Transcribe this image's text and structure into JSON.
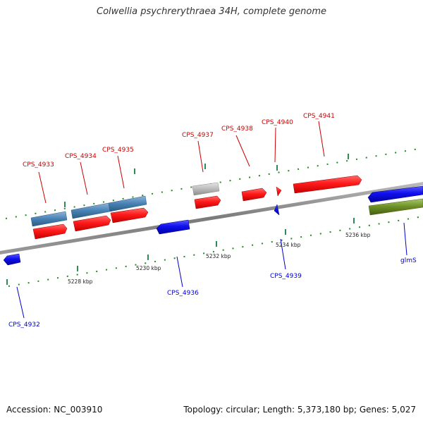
{
  "title": "Colwellia psychrerythraea 34H, complete genome",
  "footer": {
    "accession": "Accession: NC_003910",
    "topology": "Topology: circular; Length: 5,373,180 bp; Genes: 5,027"
  },
  "colors": {
    "forward_red": "#ff1a1a",
    "reverse_blue": "#1010ee",
    "steel_blue": "#4682b4",
    "gray_gene": "#bbbbbb",
    "olive_green": "#6b8e23",
    "backbone": "#888888",
    "tick_green": "#228b22",
    "label_red": "#cc0000",
    "label_blue": "#0000cc"
  },
  "scale_labels": [
    "5228 kbp",
    "5230 kbp",
    "5232 kbp",
    "5234 kbp",
    "5236 kbp"
  ],
  "genes": [
    {
      "id": "g4932",
      "label": "CPS_4932",
      "strand": "reverse"
    },
    {
      "id": "g4933",
      "label": "CPS_4933",
      "strand": "forward"
    },
    {
      "id": "g4934",
      "label": "CPS_4934",
      "strand": "forward"
    },
    {
      "id": "g4935",
      "label": "CPS_4935",
      "strand": "forward"
    },
    {
      "id": "g4936",
      "label": "CPS_4936",
      "strand": "reverse"
    },
    {
      "id": "g4937",
      "label": "CPS_4937",
      "strand": "forward"
    },
    {
      "id": "g4938",
      "label": "CPS_4938",
      "strand": "forward"
    },
    {
      "id": "g4939",
      "label": "CPS_4939",
      "strand": "reverse"
    },
    {
      "id": "g4940",
      "label": "CPS_4940",
      "strand": "forward"
    },
    {
      "id": "g4941",
      "label": "CPS_4941",
      "strand": "forward"
    },
    {
      "id": "glmS",
      "label": "glmS",
      "strand": "reverse"
    }
  ]
}
